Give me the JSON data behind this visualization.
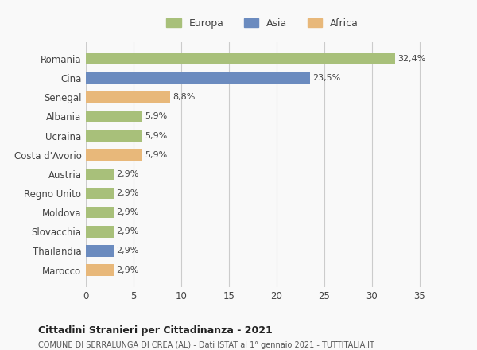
{
  "countries": [
    "Romania",
    "Cina",
    "Senegal",
    "Albania",
    "Ucraina",
    "Costa d'Avorio",
    "Austria",
    "Regno Unito",
    "Moldova",
    "Slovacchia",
    "Thailandia",
    "Marocco"
  ],
  "values": [
    32.4,
    23.5,
    8.8,
    5.9,
    5.9,
    5.9,
    2.9,
    2.9,
    2.9,
    2.9,
    2.9,
    2.9
  ],
  "labels": [
    "32,4%",
    "23,5%",
    "8,8%",
    "5,9%",
    "5,9%",
    "5,9%",
    "2,9%",
    "2,9%",
    "2,9%",
    "2,9%",
    "2,9%",
    "2,9%"
  ],
  "continents": [
    "Europa",
    "Asia",
    "Africa",
    "Europa",
    "Europa",
    "Africa",
    "Europa",
    "Europa",
    "Europa",
    "Europa",
    "Asia",
    "Africa"
  ],
  "colors": {
    "Europa": "#a8c07a",
    "Asia": "#6b8bbf",
    "Africa": "#e8b87a"
  },
  "legend_labels": [
    "Europa",
    "Asia",
    "Africa"
  ],
  "xlim": [
    0,
    37
  ],
  "xticks": [
    0,
    5,
    10,
    15,
    20,
    25,
    30,
    35
  ],
  "title": "Cittadini Stranieri per Cittadinanza - 2021",
  "subtitle": "COMUNE DI SERRALUNGA DI CREA (AL) - Dati ISTAT al 1° gennaio 2021 - TUTTITALIA.IT",
  "bg_color": "#f9f9f9",
  "grid_color": "#cccccc",
  "bar_height": 0.6
}
